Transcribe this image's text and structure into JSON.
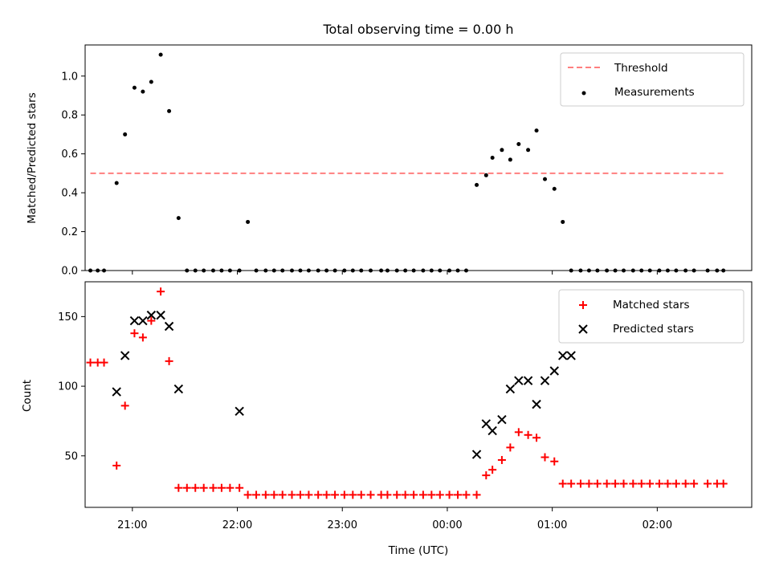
{
  "chart_data": [
    {
      "type": "scatter",
      "title": "Total observing time = 0.00 h",
      "xlabel": "",
      "ylabel": "Matched/Predicted stars",
      "ylim": [
        0,
        1.16
      ],
      "yticks": [
        "0.0",
        "0.2",
        "0.4",
        "0.6",
        "0.8",
        "1.0"
      ],
      "xlim": [
        -3.45,
        2.9
      ],
      "legend_position": "top-right",
      "threshold": {
        "name": "Threshold",
        "color": "#ff7f7f",
        "value": 0.5,
        "x": [
          -3.4,
          2.63
        ]
      },
      "series": [
        {
          "name": "Measurements",
          "color": "#000000",
          "x": [
            -3.4,
            -3.33,
            -3.27,
            -3.15,
            -3.07,
            -2.98,
            -2.9,
            -2.82,
            -2.73,
            -2.65,
            -2.56,
            -2.48,
            -2.4,
            -2.32,
            -2.23,
            -2.15,
            -2.07,
            -1.98,
            -1.9,
            -1.82,
            -1.73,
            -1.65,
            -1.57,
            -1.48,
            -1.4,
            -1.32,
            -1.23,
            -1.15,
            -1.07,
            -0.98,
            -0.9,
            -0.82,
            -0.73,
            -0.63,
            -0.57,
            -0.48,
            -0.4,
            -0.32,
            -0.23,
            -0.15,
            -0.07,
            0.02,
            0.1,
            0.18,
            0.28,
            0.37,
            0.43,
            0.52,
            0.6,
            0.68,
            0.77,
            0.85,
            0.93,
            1.02,
            1.1,
            1.18,
            1.27,
            1.35,
            1.43,
            1.52,
            1.6,
            1.68,
            1.77,
            1.85,
            1.93,
            2.02,
            2.1,
            2.18,
            2.27,
            2.35,
            2.48,
            2.57,
            2.63
          ],
          "y": [
            0,
            0,
            0,
            0.45,
            0.7,
            0.94,
            0.92,
            0.97,
            1.11,
            0.82,
            0.27,
            0,
            0,
            0,
            0,
            0,
            0,
            0,
            0.25,
            0,
            0,
            0,
            0,
            0,
            0,
            0,
            0,
            0,
            0,
            0,
            0,
            0,
            0,
            0,
            0,
            0,
            0,
            0,
            0,
            0,
            0,
            0,
            0,
            0,
            0.44,
            0.49,
            0.58,
            0.62,
            0.57,
            0.65,
            0.62,
            0.72,
            0.47,
            0.42,
            0.25,
            0,
            0,
            0,
            0,
            0,
            0,
            0,
            0,
            0,
            0,
            0,
            0,
            0,
            0,
            0,
            0,
            0,
            0
          ]
        }
      ]
    },
    {
      "type": "scatter",
      "title": "",
      "xlabel": "Time (UTC)",
      "ylabel": "Count",
      "ylim": [
        13,
        175
      ],
      "yticks": [
        "50",
        "100",
        "150"
      ],
      "xlim": [
        -3.45,
        2.9
      ],
      "xticks": [
        "21:00",
        "22:00",
        "23:00",
        "00:00",
        "01:00",
        "02:00"
      ],
      "legend_position": "top-right",
      "series": [
        {
          "name": "Matched stars",
          "color": "#ff0000",
          "marker": "plus",
          "x": [
            -3.4,
            -3.33,
            -3.27,
            -3.15,
            -3.07,
            -2.98,
            -2.9,
            -2.82,
            -2.73,
            -2.65,
            -2.56,
            -2.48,
            -2.4,
            -2.32,
            -2.23,
            -2.15,
            -2.07,
            -1.98,
            -1.9,
            -1.82,
            -1.73,
            -1.65,
            -1.57,
            -1.48,
            -1.4,
            -1.32,
            -1.23,
            -1.15,
            -1.07,
            -0.98,
            -0.9,
            -0.82,
            -0.73,
            -0.63,
            -0.57,
            -0.48,
            -0.4,
            -0.32,
            -0.23,
            -0.15,
            -0.07,
            0.02,
            0.1,
            0.18,
            0.28,
            0.37,
            0.43,
            0.52,
            0.6,
            0.68,
            0.77,
            0.85,
            0.93,
            1.02,
            1.1,
            1.18,
            1.27,
            1.35,
            1.43,
            1.52,
            1.6,
            1.68,
            1.77,
            1.85,
            1.93,
            2.02,
            2.1,
            2.18,
            2.27,
            2.35,
            2.48,
            2.57,
            2.63
          ],
          "y": [
            117,
            117,
            117,
            43,
            86,
            138,
            135,
            147,
            168,
            118,
            27,
            27,
            27,
            27,
            27,
            27,
            27,
            27,
            22,
            22,
            22,
            22,
            22,
            22,
            22,
            22,
            22,
            22,
            22,
            22,
            22,
            22,
            22,
            22,
            22,
            22,
            22,
            22,
            22,
            22,
            22,
            22,
            22,
            22,
            22,
            36,
            40,
            47,
            56,
            67,
            65,
            63,
            49,
            46,
            30,
            30,
            30,
            30,
            30,
            30,
            30,
            30,
            30,
            30,
            30,
            30,
            30,
            30,
            30,
            30,
            30,
            30,
            30
          ]
        },
        {
          "name": "Predicted stars",
          "color": "#000000",
          "marker": "x",
          "x": [
            -3.15,
            -3.07,
            -2.98,
            -2.9,
            -2.82,
            -2.73,
            -2.65,
            -2.56,
            -1.98,
            0.28,
            0.37,
            0.43,
            0.52,
            0.6,
            0.68,
            0.77,
            0.85,
            0.93,
            1.02,
            1.1,
            1.18
          ],
          "y": [
            96,
            122,
            147,
            147,
            151,
            151,
            143,
            98,
            82,
            51,
            73,
            68,
            76,
            98,
            104,
            104,
            87,
            104,
            111,
            122,
            122
          ]
        }
      ]
    }
  ]
}
